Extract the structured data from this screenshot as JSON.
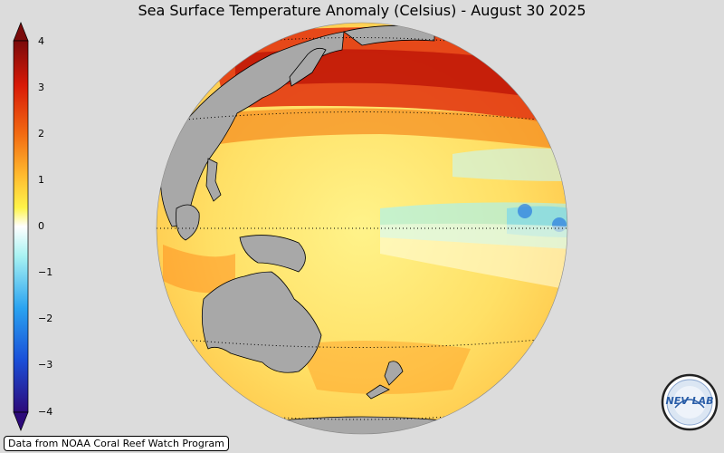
{
  "title": "Sea Surface Temperature Anomaly (Celsius) - August 30 2025",
  "colorbar": {
    "ticks": [
      "4",
      "3",
      "2",
      "1",
      "0",
      "−1",
      "−2",
      "−3",
      "−4"
    ],
    "colors": [
      "#2d0a7a",
      "#1a4fd8",
      "#2aa3f0",
      "#a8f2f2",
      "#ffffff",
      "#fff44a",
      "#ffb92e",
      "#f26a12",
      "#d81a08",
      "#7a0a0a"
    ]
  },
  "credit": "Data from NOAA Coral Reef Watch Program",
  "logo": {
    "text": "NEV LAB",
    "icon": "nevlab-logo-icon"
  },
  "colors": {
    "background": "#dcdcdc",
    "land": "#a8a8a8",
    "warm": "#cc1100",
    "cool": "#a8f2f2"
  }
}
